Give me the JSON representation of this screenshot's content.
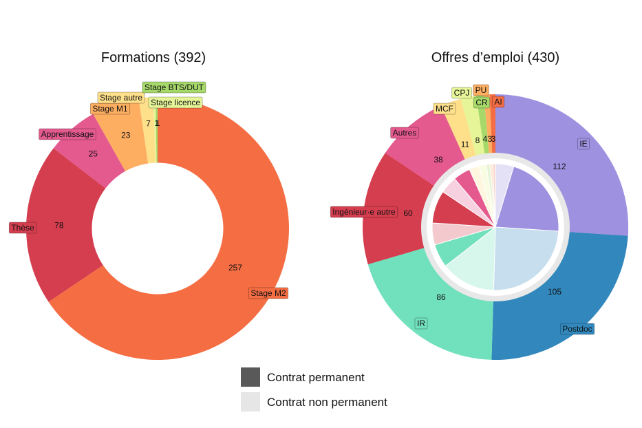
{
  "chart_data": [
    {
      "type": "pie",
      "title": "Formations (392)",
      "hole": 0.5,
      "slices": [
        {
          "name": "Stage M2",
          "value": 257,
          "color": "#f46d43",
          "label": "Stage M2",
          "value_label": "257"
        },
        {
          "name": "Thèse",
          "value": 78,
          "color": "#d53e4f",
          "label": "Thèse",
          "value_label": "78"
        },
        {
          "name": "Apprentissage",
          "value": 25,
          "color": "#e45a8e",
          "label": "Apprentissage",
          "value_label": "25"
        },
        {
          "name": "Stage M1",
          "value": 23,
          "color": "#fdae61",
          "label": "Stage M1",
          "value_label": "23"
        },
        {
          "name": "Stage autre",
          "value": 7,
          "color": "#fee08b",
          "label": "Stage autre",
          "value_label": "7"
        },
        {
          "name": "Stage licence",
          "value": 1,
          "color": "#e6f598",
          "label": "Stage licence",
          "value_label": "1"
        },
        {
          "name": "Stage BTS/DUT",
          "value": 1,
          "color": "#a6d96a",
          "label": "Stage BTS/DUT",
          "value_label": "1"
        }
      ]
    },
    {
      "type": "pie",
      "title": "Offres d’emploi (430)",
      "slices": [
        {
          "name": "IE",
          "value": 112,
          "permanent_share": 0.82,
          "color": "#9e91e0",
          "label": "IE",
          "value_label": "112"
        },
        {
          "name": "Postdoc",
          "value": 105,
          "permanent_share": 0.0,
          "color": "#3288bd",
          "label": "Postdoc",
          "value_label": "105"
        },
        {
          "name": "IR",
          "value": 86,
          "permanent_share": 0.3,
          "color": "#71e0bc",
          "label": "IR",
          "value_label": "86"
        },
        {
          "name": "Ingénieur·e autre",
          "value": 60,
          "permanent_share": 0.6,
          "color": "#d53e4f",
          "label": "Ingénieur·e autre",
          "value_label": "60"
        },
        {
          "name": "Autres",
          "value": 38,
          "permanent_share": 0.5,
          "color": "#e45a8e",
          "label": "Autres",
          "value_label": "38"
        },
        {
          "name": "MCF",
          "value": 11,
          "permanent_share": 0.0,
          "color": "#fee08b",
          "label": "MCF",
          "value_label": "11"
        },
        {
          "name": "CPJ",
          "value": 8,
          "permanent_share": 0.0,
          "color": "#e6f598",
          "label": "CPJ",
          "value_label": "8"
        },
        {
          "name": "CR",
          "value": 4,
          "permanent_share": 0.0,
          "color": "#a6d96a",
          "label": "CR",
          "value_label": "4"
        },
        {
          "name": "PU",
          "value": 3,
          "permanent_share": 0.0,
          "color": "#fdae61",
          "label": "PU",
          "value_label": "3"
        },
        {
          "name": "AI",
          "value": 3,
          "permanent_share": 0.0,
          "color": "#f46d43",
          "label": "AI",
          "value_label": "3"
        }
      ]
    }
  ],
  "legend": [
    {
      "label": "Contrat permanent",
      "color": "#595959"
    },
    {
      "label": "Contrat non permanent",
      "color": "#e6e6e6"
    }
  ]
}
